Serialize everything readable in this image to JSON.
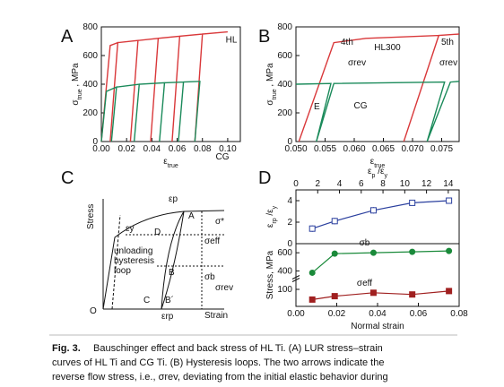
{
  "chart_data": [
    {
      "type": "line",
      "label": "A",
      "xlim": [
        0,
        0.11
      ],
      "ylim": [
        0,
        800
      ],
      "xticks": [
        {
          "value": 0,
          "label": "0.00"
        },
        {
          "value": 0.02,
          "label": "0.02"
        },
        {
          "value": 0.04,
          "label": "0.04"
        },
        {
          "value": 0.06,
          "label": "0.06"
        },
        {
          "value": 0.08,
          "label": "0.08"
        },
        {
          "value": 0.1,
          "label": "0.10"
        }
      ],
      "yticks": [
        0,
        200,
        400,
        600,
        800
      ],
      "xlabel": [
        {
          "text": "ε"
        },
        {
          "text": "true",
          "sub": true
        }
      ],
      "ylabel": [
        {
          "text": "σ"
        },
        {
          "text": "true",
          "sub": true
        },
        {
          "text": " , MPa"
        }
      ],
      "series": [
        {
          "name": "HL",
          "color": "#d9383a",
          "x": [
            0,
            0.007,
            0.013,
            0.007,
            0.013,
            0.029,
            0.023,
            0.029,
            0.045,
            0.039,
            0.045,
            0.062,
            0.056,
            0.062,
            0.08,
            0.074,
            0.08,
            0.1
          ],
          "values": [
            0,
            670,
            690,
            0,
            690,
            705,
            0,
            705,
            720,
            0,
            720,
            735,
            0,
            735,
            750,
            0,
            750,
            765
          ]
        },
        {
          "name": "CG",
          "color": "#1a8a5a",
          "x": [
            0,
            0.004,
            0.012,
            0.008,
            0.012,
            0.03,
            0.026,
            0.03,
            0.05,
            0.046,
            0.05,
            0.065,
            0.061,
            0.065,
            0.078,
            0.074
          ],
          "values": [
            0,
            350,
            380,
            0,
            380,
            400,
            0,
            400,
            410,
            0,
            410,
            415,
            0,
            415,
            420,
            0
          ]
        }
      ]
    },
    {
      "type": "line",
      "label": "B",
      "xlim": [
        0.05,
        0.078
      ],
      "ylim": [
        0,
        800
      ],
      "xticks": [
        {
          "value": 0.05,
          "label": "0.050"
        },
        {
          "value": 0.055,
          "label": "0.055"
        },
        {
          "value": 0.06,
          "label": "0.060"
        },
        {
          "value": 0.065,
          "label": "0.065"
        },
        {
          "value": 0.07,
          "label": "0.070"
        },
        {
          "value": 0.075,
          "label": "0.075"
        }
      ],
      "yticks": [
        0,
        200,
        400,
        600,
        800
      ],
      "xlabel": [
        {
          "text": "ε"
        },
        {
          "text": "true",
          "sub": true
        }
      ],
      "ylabel": [
        {
          "text": "σ"
        },
        {
          "text": "true",
          "sub": true
        },
        {
          "text": " , MPa"
        }
      ],
      "series": [
        {
          "name": "HL300",
          "color": "#d9383a",
          "x": [
            0.0505,
            0.0565,
            0.062,
            0.0745,
            0.0685,
            0.0745,
            0.078
          ],
          "values": [
            0,
            690,
            720,
            740,
            0,
            740,
            750
          ]
        },
        {
          "name": "CG",
          "color": "#1a8a5a",
          "x": [
            0.05,
            0.056,
            0.0535,
            0.0565,
            0.0755,
            0.0725,
            0.0765,
            0.078
          ],
          "values": [
            400,
            405,
            0,
            405,
            415,
            0,
            415,
            420
          ]
        }
      ],
      "annotations": [
        "4th",
        "5th",
        "σrev",
        "σrev",
        "E"
      ]
    },
    {
      "type": "scatter",
      "label": "D",
      "xlim": [
        0,
        0.08
      ],
      "ylim": [
        0,
        5
      ],
      "yticks": [
        0,
        2,
        4
      ],
      "x2lim": [
        0,
        15
      ],
      "x2ticks": [
        0,
        2,
        4,
        6,
        8,
        10,
        12,
        14
      ],
      "x2label": [
        {
          "text": "ε"
        },
        {
          "text": "p",
          "sub": true
        },
        {
          "text": " /ε"
        },
        {
          "text": "y",
          "sub": true
        }
      ],
      "ylabel": [
        {
          "text": "ε"
        },
        {
          "text": "rp",
          "sub": true
        },
        {
          "text": " /ε"
        },
        {
          "text": "y",
          "sub": true
        }
      ],
      "series": [
        {
          "color": "#2a3f9e",
          "marker": "square",
          "x": [
            0.008,
            0.019,
            0.038,
            0.057,
            0.075
          ],
          "values": [
            1.4,
            2.1,
            3.1,
            3.8,
            4.0
          ],
          "errors": [
            0.3,
            0.3,
            0.3,
            0.2,
            0.2
          ]
        }
      ]
    },
    {
      "type": "scatter",
      "xlim": [
        0,
        0.08
      ],
      "ylim": [
        0,
        700
      ],
      "ybreak": [
        150,
        350
      ],
      "yticks": [
        100,
        400,
        600
      ],
      "xticks": [
        {
          "value": 0,
          "label": "0.00"
        },
        {
          "value": 0.02,
          "label": "0.02"
        },
        {
          "value": 0.04,
          "label": "0.04"
        },
        {
          "value": 0.06,
          "label": "0.06"
        },
        {
          "value": 0.08,
          "label": "0.08"
        }
      ],
      "xlabel": [
        {
          "text": "Normal strain"
        }
      ],
      "ylabel": [
        {
          "text": "Stress, MPa"
        }
      ],
      "series": [
        {
          "name": "σb",
          "color": "#1a8a3a",
          "marker": "circle",
          "x": [
            0.008,
            0.019,
            0.038,
            0.057,
            0.075
          ],
          "values": [
            380,
            590,
            600,
            610,
            620
          ]
        },
        {
          "name": "σeff",
          "color": "#a02020",
          "marker": "square",
          "x": [
            0.008,
            0.019,
            0.038,
            0.057,
            0.075
          ],
          "values": [
            40,
            60,
            80,
            70,
            90
          ]
        }
      ]
    }
  ],
  "diagram": {
    "label": "C",
    "labels": [
      "Stress",
      "Strain",
      "O",
      "εy",
      "εp",
      "A",
      "σ*",
      "D",
      "σeff",
      "unloading",
      "hysteresis",
      "loop",
      "B",
      "σb",
      "σrev",
      "C",
      "B´",
      "εrp"
    ]
  },
  "caption": {
    "label": "Fig. 3.",
    "lines": [
      "Bauschinger effect and back stress of HL Ti. (A) LUR stress–strain",
      "curves of HL Ti and CG Ti. (B) Hysteresis loops. The two arrows indicate the",
      "reverse flow stress, i.e., σrev, deviating from the initial elastic behavior during"
    ]
  }
}
